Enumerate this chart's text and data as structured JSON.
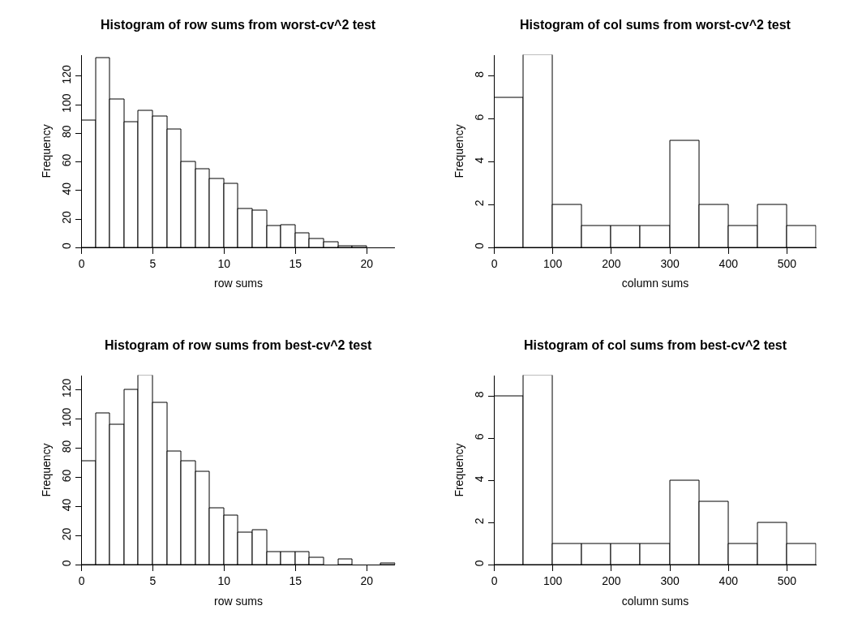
{
  "chart_data": [
    {
      "type": "histogram",
      "title": "Histogram of row sums from worst-cv^2 test",
      "xlabel": "row sums",
      "ylabel": "Frequency",
      "bins": [
        0,
        1,
        2,
        3,
        4,
        5,
        6,
        7,
        8,
        9,
        10,
        11,
        12,
        13,
        14,
        15,
        16,
        17,
        18,
        19,
        20,
        21,
        22
      ],
      "values": [
        89,
        133,
        104,
        88,
        96,
        92,
        83,
        60,
        55,
        48,
        45,
        27,
        26,
        15,
        16,
        10,
        6,
        4,
        1,
        1,
        0,
        0
      ],
      "color": "#ffffff",
      "xlim": [
        0,
        22
      ],
      "xticks": [
        0,
        5,
        10,
        15,
        20
      ],
      "ylim": [
        0,
        135
      ],
      "yticks": [
        0,
        20,
        40,
        60,
        80,
        100,
        120
      ],
      "grid": false
    },
    {
      "type": "histogram",
      "title": "Histogram of col sums from worst-cv^2 test",
      "xlabel": "column sums",
      "ylabel": "Frequency",
      "bins": [
        0,
        50,
        100,
        150,
        200,
        250,
        300,
        350,
        400,
        450,
        500,
        550
      ],
      "values": [
        7,
        9,
        2,
        1,
        1,
        1,
        5,
        2,
        1,
        2,
        1
      ],
      "color": "#ffffff",
      "xlim": [
        0,
        550
      ],
      "xticks": [
        0,
        100,
        200,
        300,
        400,
        500
      ],
      "ylim": [
        0,
        9
      ],
      "yticks": [
        0,
        2,
        4,
        6,
        8
      ],
      "grid": false
    },
    {
      "type": "histogram",
      "title": "Histogram of row sums from best-cv^2 test",
      "xlabel": "row sums",
      "ylabel": "Frequency",
      "bins": [
        0,
        1,
        2,
        3,
        4,
        5,
        6,
        7,
        8,
        9,
        10,
        11,
        12,
        13,
        14,
        15,
        16,
        17,
        18,
        19,
        20,
        21,
        22
      ],
      "values": [
        71,
        104,
        96,
        120,
        130,
        111,
        78,
        71,
        64,
        39,
        34,
        22,
        24,
        9,
        9,
        9,
        5,
        0,
        4,
        0,
        0,
        1
      ],
      "color": "#ffffff",
      "xlim": [
        0,
        22
      ],
      "xticks": [
        0,
        5,
        10,
        15,
        20
      ],
      "ylim": [
        0,
        130
      ],
      "yticks": [
        0,
        20,
        40,
        60,
        80,
        100,
        120
      ],
      "grid": false
    },
    {
      "type": "histogram",
      "title": "Histogram of col sums from best-cv^2 test",
      "xlabel": "column sums",
      "ylabel": "Frequency",
      "bins": [
        0,
        50,
        100,
        150,
        200,
        250,
        300,
        350,
        400,
        450,
        500,
        550
      ],
      "values": [
        8,
        9,
        1,
        1,
        1,
        1,
        4,
        3,
        1,
        2,
        1
      ],
      "color": "#ffffff",
      "xlim": [
        0,
        550
      ],
      "xticks": [
        0,
        100,
        200,
        300,
        400,
        500
      ],
      "ylim": [
        0,
        9
      ],
      "yticks": [
        0,
        2,
        4,
        6,
        8
      ],
      "grid": false
    }
  ]
}
